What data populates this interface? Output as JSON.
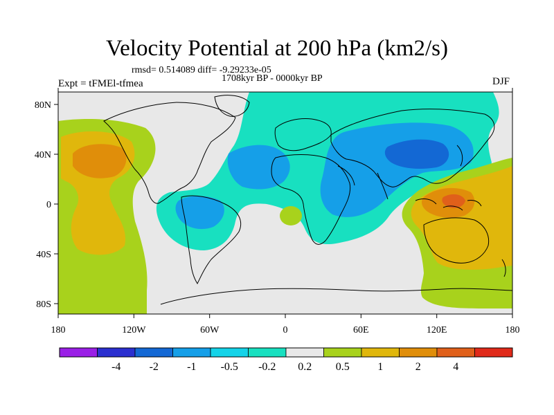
{
  "title": "Velocity Potential at 200 hPa (km2/s)",
  "stats": "rmsd= 0.514089 diff= -9.29233e-05",
  "period": "1708kyr BP - 0000kyr BP",
  "experiment": "Expt = tFMEl-tfmea",
  "season": "DJF",
  "axes": {
    "x_ticks": [
      "180",
      "120W",
      "60W",
      "0",
      "60E",
      "120E",
      "180"
    ],
    "y_ticks": [
      "80N",
      "40N",
      "0",
      "40S",
      "80S"
    ]
  },
  "colorbar": {
    "colors": [
      "#9a1fe6",
      "#2b2fcf",
      "#1368d4",
      "#159fe8",
      "#14d3e8",
      "#18e0c0",
      "#e8e8e8",
      "#a8d21c",
      "#e0b70c",
      "#e08e0a",
      "#e0601a",
      "#e02a1a"
    ],
    "labels": [
      "-4",
      "-2",
      "-1",
      "-0.5",
      "-0.2",
      "0.2",
      "0.5",
      "1",
      "2",
      "4"
    ]
  },
  "map_colors": {
    "ocean_neutral": "#e8e8e8",
    "coast": "#000000"
  }
}
